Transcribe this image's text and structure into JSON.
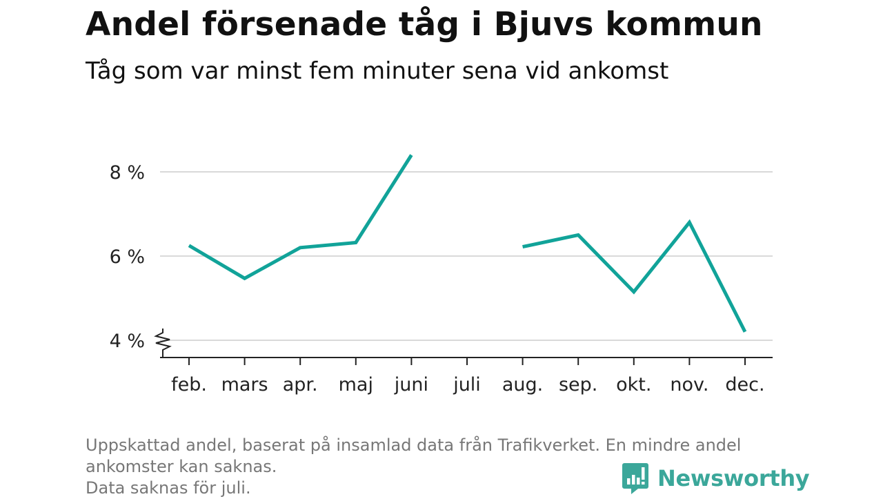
{
  "title": "Andel försenade tåg i Bjuvs kommun",
  "subtitle": "Tåg som var minst fem minuter sena vid ankomst",
  "chart_data": {
    "type": "line",
    "categories": [
      "feb.",
      "mars",
      "apr.",
      "maj",
      "juni",
      "juli",
      "aug.",
      "sep.",
      "okt.",
      "nov.",
      "dec."
    ],
    "series": [
      {
        "values": [
          6.25,
          5.47,
          6.2,
          6.32,
          8.4,
          null,
          6.22,
          6.5,
          5.15,
          6.8,
          4.2
        ]
      }
    ],
    "y_ticks": [
      {
        "value": 4,
        "label": "4 %"
      },
      {
        "value": 6,
        "label": "6 %"
      },
      {
        "value": 8,
        "label": "8 %"
      }
    ],
    "ylim": [
      3.6,
      8.6
    ],
    "y_axis_break": true,
    "grid": true,
    "line_color": "#11a399"
  },
  "footer": {
    "lines": [
      "Uppskattad andel, baserat på insamlad data från Trafikverket. En mindre andel",
      "ankomster kan saknas.",
      "Data saknas för juli."
    ]
  },
  "brand": {
    "name": "Newsworthy",
    "color": "#3ba79a",
    "icon": "newsworthy-logo-icon"
  }
}
